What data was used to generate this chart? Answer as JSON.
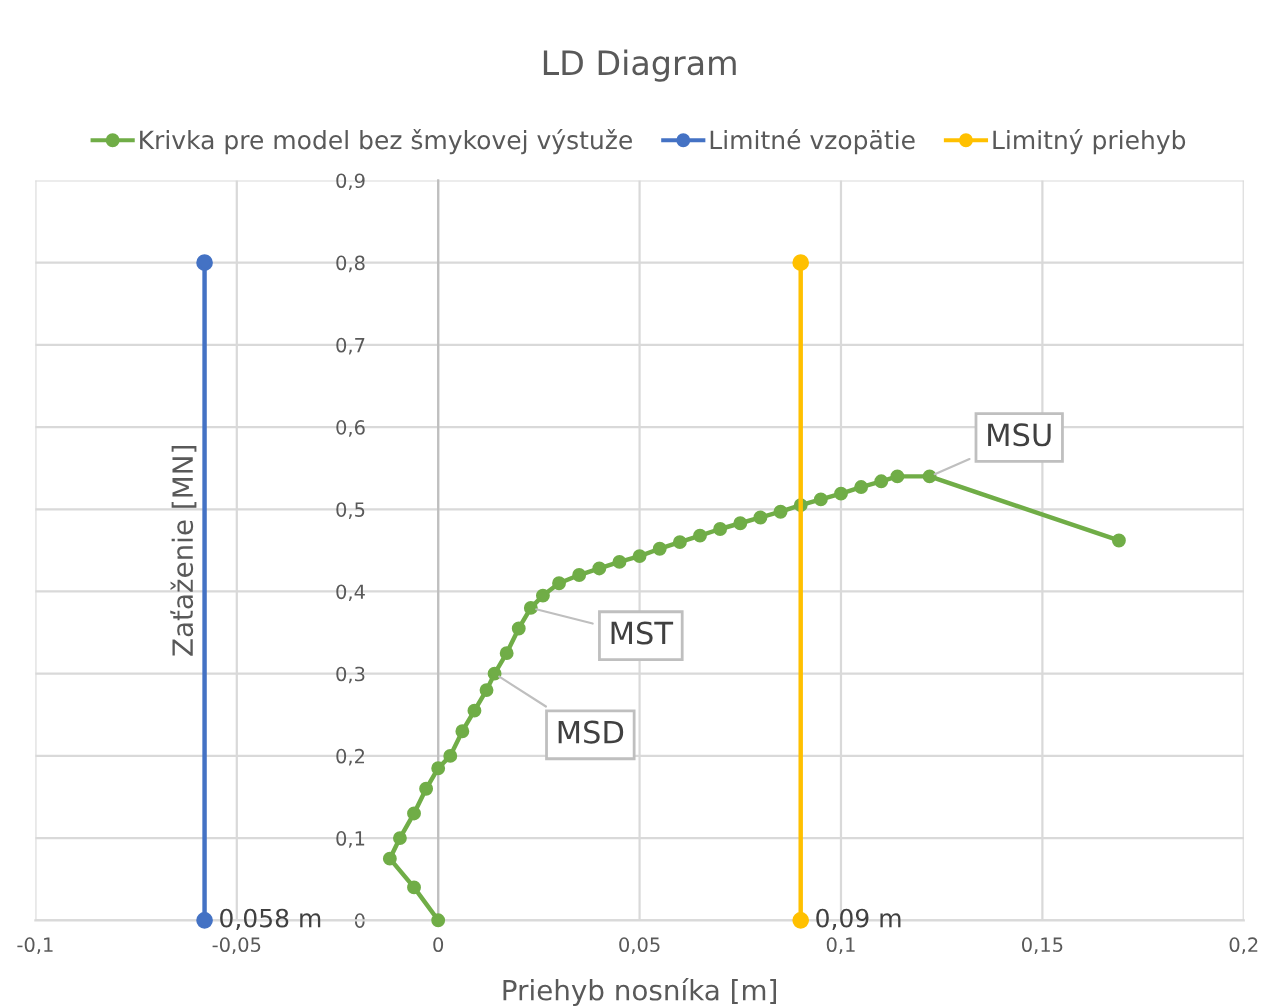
{
  "chart_data": {
    "type": "line",
    "title": "LD Diagram",
    "xlabel": "Priehyb nosníka [m]",
    "ylabel": "Zaťaženie [MN]",
    "xlim": [
      -0.1,
      0.2
    ],
    "ylim": [
      0,
      0.9
    ],
    "xticks": [
      {
        "value": -0.1,
        "label": "-0,1"
      },
      {
        "value": -0.05,
        "label": "-0,05"
      },
      {
        "value": 0,
        "label": "0"
      },
      {
        "value": 0.05,
        "label": "0,05"
      },
      {
        "value": 0.1,
        "label": "0,1"
      },
      {
        "value": 0.15,
        "label": "0,15"
      },
      {
        "value": 0.2,
        "label": "0,2"
      }
    ],
    "yticks": [
      {
        "value": 0,
        "label": "0"
      },
      {
        "value": 0.1,
        "label": "0,1"
      },
      {
        "value": 0.2,
        "label": "0,2"
      },
      {
        "value": 0.3,
        "label": "0,3"
      },
      {
        "value": 0.4,
        "label": "0,4"
      },
      {
        "value": 0.5,
        "label": "0,5"
      },
      {
        "value": 0.6,
        "label": "0,6"
      },
      {
        "value": 0.7,
        "label": "0,7"
      },
      {
        "value": 0.8,
        "label": "0,8"
      },
      {
        "value": 0.9,
        "label": "0,9"
      }
    ],
    "grid": true,
    "legend": "top",
    "marker": "circle",
    "line_style": "solid",
    "series": [
      {
        "name": "Krivka pre model bez šmykovej výstuže",
        "color": "#70ad47",
        "x": [
          0,
          -0.006,
          -0.012,
          -0.0095,
          -0.006,
          -0.003,
          0.0,
          0.003,
          0.006,
          0.009,
          0.012,
          0.014,
          0.017,
          0.02,
          0.023,
          0.026,
          0.03,
          0.035,
          0.04,
          0.045,
          0.05,
          0.055,
          0.06,
          0.065,
          0.07,
          0.075,
          0.08,
          0.085,
          0.09,
          0.095,
          0.1,
          0.105,
          0.11,
          0.114,
          0.122,
          0.169
        ],
        "values": [
          0,
          0.04,
          0.075,
          0.1,
          0.13,
          0.16,
          0.185,
          0.2,
          0.23,
          0.255,
          0.28,
          0.3,
          0.325,
          0.355,
          0.38,
          0.395,
          0.41,
          0.42,
          0.428,
          0.436,
          0.443,
          0.452,
          0.46,
          0.468,
          0.476,
          0.483,
          0.49,
          0.497,
          0.505,
          0.512,
          0.519,
          0.527,
          0.534,
          0.54,
          0.54,
          0.462
        ]
      },
      {
        "name": "Limitné vzopätie",
        "color": "#4472c4",
        "x": [
          -0.058,
          -0.058
        ],
        "values": [
          0,
          0.8
        ]
      },
      {
        "name": "Limitný priehyb",
        "color": "#ffc000",
        "x": [
          0.09,
          0.09
        ],
        "values": [
          0,
          0.8
        ]
      }
    ],
    "annotations": [
      {
        "text": "MSD",
        "x": 0.014,
        "y": 0.3
      },
      {
        "text": "MST",
        "x": 0.023,
        "y": 0.38
      },
      {
        "text": "MSU",
        "x": 0.122,
        "y": 0.54
      },
      {
        "text": "0,058 m",
        "x": -0.058,
        "y": 0
      },
      {
        "text": "0,09 m",
        "x": 0.09,
        "y": 0
      }
    ]
  }
}
